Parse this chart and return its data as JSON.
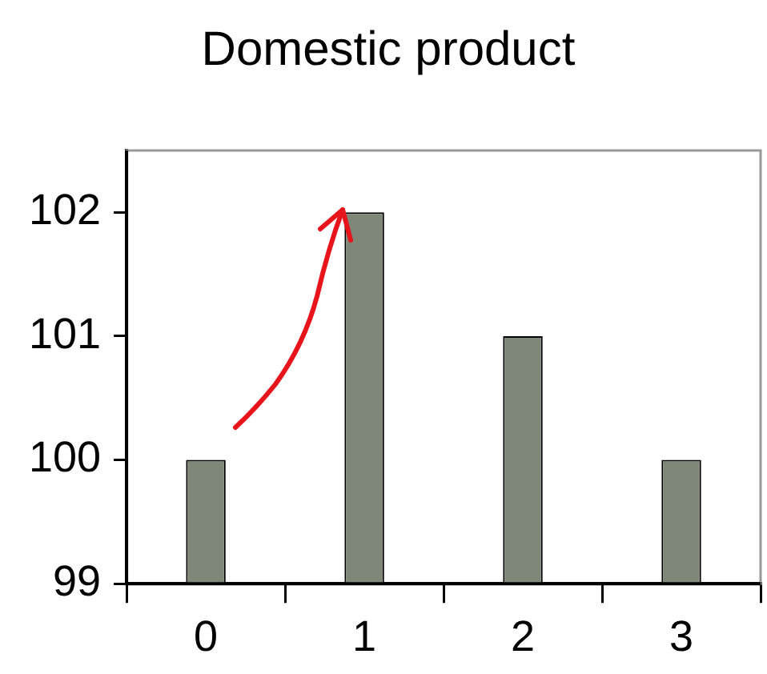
{
  "chart_data": {
    "type": "bar",
    "title": "Domestic product",
    "categories": [
      "0",
      "1",
      "2",
      "3"
    ],
    "values": [
      100,
      102,
      101,
      100
    ],
    "color": "#7f8878",
    "ylim": [
      99,
      102.5
    ],
    "yticks": [
      99,
      100,
      101,
      102
    ],
    "grid": false,
    "legend": false
  }
}
